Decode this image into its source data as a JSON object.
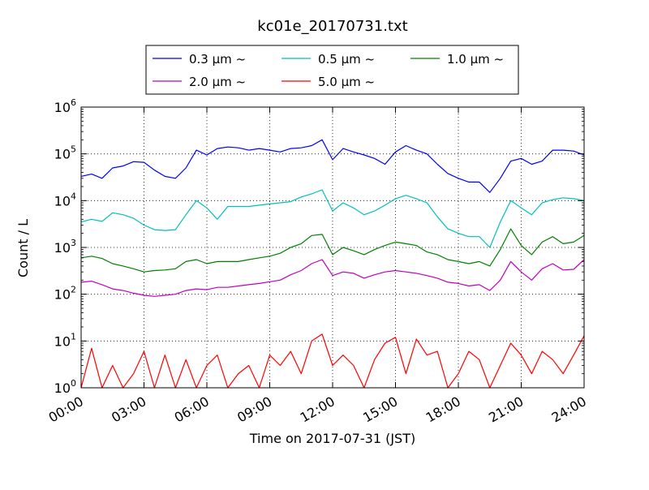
{
  "chart_data": {
    "type": "line",
    "title": "kc01e_20170731.txt",
    "xlabel": "Time on 2017-07-31 (JST)",
    "ylabel": "Count / L",
    "yscale": "log",
    "xlim": [
      0,
      24
    ],
    "ylim": [
      1,
      1000000
    ],
    "grid": true,
    "legend_position": "top",
    "x_ticks": [
      {
        "value": 0,
        "label": "00:00"
      },
      {
        "value": 3,
        "label": "03:00"
      },
      {
        "value": 6,
        "label": "06:00"
      },
      {
        "value": 9,
        "label": "09:00"
      },
      {
        "value": 12,
        "label": "12:00"
      },
      {
        "value": 15,
        "label": "15:00"
      },
      {
        "value": 18,
        "label": "18:00"
      },
      {
        "value": 21,
        "label": "21:00"
      },
      {
        "value": 24,
        "label": "24:00"
      }
    ],
    "y_ticks": [
      {
        "value": 1,
        "base": "10",
        "exp": "0"
      },
      {
        "value": 10,
        "base": "10",
        "exp": "1"
      },
      {
        "value": 100,
        "base": "10",
        "exp": "2"
      },
      {
        "value": 1000,
        "base": "10",
        "exp": "3"
      },
      {
        "value": 10000,
        "base": "10",
        "exp": "4"
      },
      {
        "value": 100000,
        "base": "10",
        "exp": "5"
      },
      {
        "value": 1000000,
        "base": "10",
        "exp": "6"
      }
    ],
    "series": [
      {
        "name": "0.3 μm ~",
        "color": "#0000ff",
        "x": [
          0,
          0.5,
          1,
          1.5,
          2,
          2.5,
          3,
          3.5,
          4,
          4.5,
          5,
          5.5,
          6,
          6.5,
          7,
          7.5,
          8,
          8.5,
          9,
          9.5,
          10,
          10.5,
          11,
          11.5,
          12,
          12.5,
          13,
          13.5,
          14,
          14.5,
          15,
          15.5,
          16,
          16.5,
          17,
          17.5,
          18,
          18.5,
          19,
          19.5,
          20,
          20.5,
          21,
          21.5,
          22,
          22.5,
          23,
          23.5,
          24
        ],
        "values": [
          33000,
          37000,
          30000,
          50000,
          55000,
          68000,
          66000,
          45000,
          33000,
          30000,
          50000,
          120000,
          95000,
          130000,
          140000,
          135000,
          120000,
          130000,
          120000,
          110000,
          130000,
          135000,
          150000,
          200000,
          75000,
          130000,
          110000,
          95000,
          80000,
          60000,
          110000,
          150000,
          120000,
          100000,
          60000,
          38000,
          30000,
          25000,
          25000,
          15000,
          30000,
          70000,
          80000,
          60000,
          70000,
          120000,
          120000,
          115000,
          95000
        ]
      },
      {
        "name": "0.5 μm ~",
        "color": "#00bfbf",
        "x": [
          0,
          0.5,
          1,
          1.5,
          2,
          2.5,
          3,
          3.5,
          4,
          4.5,
          5,
          5.5,
          6,
          6.5,
          7,
          7.5,
          8,
          8.5,
          9,
          9.5,
          10,
          10.5,
          11,
          11.5,
          12,
          12.5,
          13,
          13.5,
          14,
          14.5,
          15,
          15.5,
          16,
          16.5,
          17,
          17.5,
          18,
          18.5,
          19,
          19.5,
          20,
          20.5,
          21,
          21.5,
          22,
          22.5,
          23,
          23.5,
          24
        ],
        "values": [
          3500,
          4000,
          3600,
          5500,
          5000,
          4200,
          3000,
          2400,
          2300,
          2400,
          5000,
          10000,
          7000,
          4000,
          7500,
          7500,
          7500,
          8000,
          8500,
          9000,
          9500,
          12000,
          14000,
          17000,
          6000,
          9000,
          7000,
          5000,
          6000,
          8000,
          11000,
          13000,
          11000,
          9000,
          4500,
          2500,
          2000,
          1700,
          1700,
          1000,
          3500,
          10000,
          7000,
          5000,
          9000,
          10500,
          11500,
          11000,
          10000
        ]
      },
      {
        "name": "1.0 μm ~",
        "color": "#008000",
        "x": [
          0,
          0.5,
          1,
          1.5,
          2,
          2.5,
          3,
          3.5,
          4,
          4.5,
          5,
          5.5,
          6,
          6.5,
          7,
          7.5,
          8,
          8.5,
          9,
          9.5,
          10,
          10.5,
          11,
          11.5,
          12,
          12.5,
          13,
          13.5,
          14,
          14.5,
          15,
          15.5,
          16,
          16.5,
          17,
          17.5,
          18,
          18.5,
          19,
          19.5,
          20,
          20.5,
          21,
          21.5,
          22,
          22.5,
          23,
          23.5,
          24
        ],
        "values": [
          600,
          650,
          580,
          450,
          400,
          350,
          300,
          320,
          330,
          350,
          500,
          550,
          450,
          500,
          500,
          500,
          550,
          600,
          650,
          750,
          1000,
          1200,
          1800,
          1900,
          700,
          1000,
          850,
          700,
          900,
          1100,
          1300,
          1200,
          1100,
          800,
          700,
          550,
          500,
          450,
          500,
          400,
          900,
          2500,
          1100,
          700,
          1300,
          1700,
          1200,
          1300,
          1800
        ]
      },
      {
        "name": "2.0 μm ~",
        "color": "#bf00bf",
        "x": [
          0,
          0.5,
          1,
          1.5,
          2,
          2.5,
          3,
          3.5,
          4,
          4.5,
          5,
          5.5,
          6,
          6.5,
          7,
          7.5,
          8,
          8.5,
          9,
          9.5,
          10,
          10.5,
          11,
          11.5,
          12,
          12.5,
          13,
          13.5,
          14,
          14.5,
          15,
          15.5,
          16,
          16.5,
          17,
          17.5,
          18,
          18.5,
          19,
          19.5,
          20,
          20.5,
          21,
          21.5,
          22,
          22.5,
          23,
          23.5,
          24
        ],
        "values": [
          180,
          190,
          160,
          130,
          120,
          105,
          95,
          90,
          95,
          100,
          120,
          130,
          125,
          140,
          140,
          150,
          160,
          170,
          185,
          200,
          260,
          320,
          450,
          550,
          250,
          300,
          280,
          220,
          260,
          300,
          320,
          300,
          280,
          250,
          220,
          180,
          170,
          150,
          160,
          120,
          200,
          500,
          300,
          200,
          350,
          450,
          330,
          340,
          550
        ]
      },
      {
        "name": "5.0 μm ~",
        "color": "#ff0000",
        "x": [
          0,
          0.5,
          1,
          1.5,
          2,
          2.5,
          3,
          3.5,
          4,
          4.5,
          5,
          5.5,
          6,
          6.5,
          7,
          7.5,
          8,
          8.5,
          9,
          9.5,
          10,
          10.5,
          11,
          11.5,
          12,
          12.5,
          13,
          13.5,
          14,
          14.5,
          15,
          15.5,
          16,
          16.5,
          17,
          17.5,
          18,
          18.5,
          19,
          19.5,
          20,
          20.5,
          21,
          21.5,
          22,
          22.5,
          23,
          23.5,
          24
        ],
        "values": [
          1,
          7,
          1,
          3,
          1,
          2,
          6,
          1,
          5,
          1,
          4,
          1,
          3,
          5,
          1,
          2,
          3,
          1,
          5,
          3,
          6,
          2,
          10,
          14,
          3,
          5,
          3,
          1,
          4,
          9,
          12,
          2,
          11,
          5,
          6,
          1,
          2,
          6,
          4,
          1,
          3,
          9,
          5,
          2,
          6,
          4,
          2,
          5,
          13
        ]
      }
    ]
  }
}
